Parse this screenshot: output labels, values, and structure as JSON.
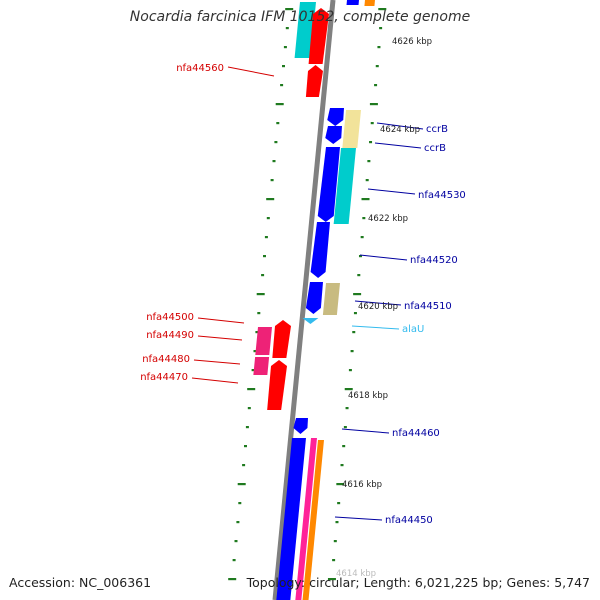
{
  "title": "Nocardia farcinica IFM 10152, complete genome",
  "accession": "Accession: NC_006361",
  "topology": "Topology: circular; Length: 6,021,225 bp; Genes: 5,747",
  "colors": {
    "backbone": "#808080",
    "tick": "#1f7a1f",
    "minus_label": "#d40000",
    "plus_label": "#0000a0",
    "rna_label": "#33bbee",
    "cds_blue": "#0000ff",
    "cds_red": "#ff0000",
    "cyan": "#00cccc",
    "khaki": "#c8bb80",
    "pale_yellow": "#f2e39a",
    "magenta": "#ee2277",
    "orange": "#ff8800",
    "pink": "#ff2299"
  },
  "scale_labels": [
    {
      "text": "4626 kbp"
    },
    {
      "text": "4624 kbp"
    },
    {
      "text": "4622 kbp"
    },
    {
      "text": "4620 kbp"
    },
    {
      "text": "4618 kbp"
    },
    {
      "text": "4616 kbp"
    },
    {
      "text": "4614 kbp"
    }
  ],
  "gene_labels": [
    {
      "text": "nfa44560",
      "strand": "minus"
    },
    {
      "text": "ccrB",
      "strand": "plus"
    },
    {
      "text": "ccrB",
      "strand": "plus"
    },
    {
      "text": "nfa44530",
      "strand": "plus"
    },
    {
      "text": "nfa44520",
      "strand": "plus"
    },
    {
      "text": "nfa44510",
      "strand": "plus"
    },
    {
      "text": "alaU",
      "strand": "rna"
    },
    {
      "text": "nfa44500",
      "strand": "minus"
    },
    {
      "text": "nfa44490",
      "strand": "minus"
    },
    {
      "text": "nfa44480",
      "strand": "minus"
    },
    {
      "text": "nfa44470",
      "strand": "minus"
    },
    {
      "text": "nfa44460",
      "strand": "plus"
    },
    {
      "text": "nfa44450",
      "strand": "plus"
    }
  ]
}
